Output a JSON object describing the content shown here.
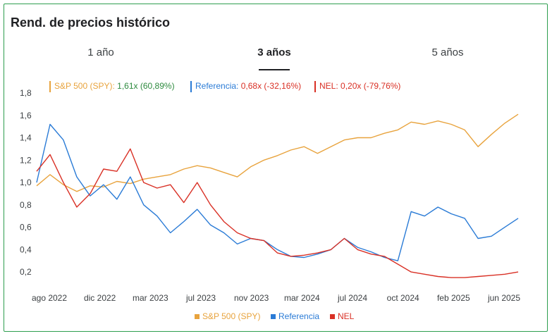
{
  "title": "Rend. de precios histórico",
  "tabs": [
    {
      "label": "1 año",
      "active": false
    },
    {
      "label": "3 años",
      "active": true
    },
    {
      "label": "5 años",
      "active": false
    }
  ],
  "legend_top": [
    {
      "name": "S&P 500 (SPY):",
      "multiple": "1,61x",
      "change": "(60,89%)",
      "color": "#e8a33d",
      "name_color": "#e8a33d",
      "value_color": "#2e8b3f"
    },
    {
      "name": "Referencia:",
      "multiple": "0,68x",
      "change": "(-32,16%)",
      "color": "#2a7bd6",
      "name_color": "#2a7bd6",
      "value_color": "#d93025"
    },
    {
      "name": "NEL:",
      "multiple": "0,20x",
      "change": "(-79,76%)",
      "color": "#d93025",
      "name_color": "#d93025",
      "value_color": "#d93025"
    }
  ],
  "legend_bottom": [
    {
      "name": "S&P 500 (SPY)",
      "color": "#e8a33d"
    },
    {
      "name": "Referencia",
      "color": "#2a7bd6"
    },
    {
      "name": "NEL",
      "color": "#d93025"
    }
  ],
  "chart_data": {
    "type": "line",
    "title": "Rend. de precios histórico",
    "xlabel": "",
    "ylabel": "",
    "x_ticks": [
      "ago 2022",
      "dic 2022",
      "mar 2023",
      "jul 2023",
      "nov 2023",
      "mar 2024",
      "jul 2024",
      "oct 2024",
      "feb 2025",
      "jun 2025"
    ],
    "y_ticks": [
      "0,2",
      "0,4",
      "0,6",
      "0,8",
      "1,0",
      "1,2",
      "1,4",
      "1,6",
      "1,8"
    ],
    "ylim": [
      0.1,
      1.8
    ],
    "xlim": [
      "2022-07",
      "2025-07"
    ],
    "grid": false,
    "series": [
      {
        "name": "S&P 500 (SPY)",
        "color": "#e8a33d",
        "points": [
          [
            "2022-07",
            0.97
          ],
          [
            "2022-08",
            1.07
          ],
          [
            "2022-09",
            0.98
          ],
          [
            "2022-10",
            0.92
          ],
          [
            "2022-11",
            0.97
          ],
          [
            "2022-12",
            0.96
          ],
          [
            "2023-01",
            1.01
          ],
          [
            "2023-02",
            0.99
          ],
          [
            "2023-03",
            1.03
          ],
          [
            "2023-04",
            1.05
          ],
          [
            "2023-05",
            1.07
          ],
          [
            "2023-06",
            1.12
          ],
          [
            "2023-07",
            1.15
          ],
          [
            "2023-08",
            1.13
          ],
          [
            "2023-09",
            1.09
          ],
          [
            "2023-10",
            1.05
          ],
          [
            "2023-11",
            1.14
          ],
          [
            "2023-12",
            1.2
          ],
          [
            "2024-01",
            1.24
          ],
          [
            "2024-02",
            1.29
          ],
          [
            "2024-03",
            1.32
          ],
          [
            "2024-04",
            1.26
          ],
          [
            "2024-05",
            1.32
          ],
          [
            "2024-06",
            1.38
          ],
          [
            "2024-07",
            1.4
          ],
          [
            "2024-08",
            1.4
          ],
          [
            "2024-09",
            1.44
          ],
          [
            "2024-10",
            1.47
          ],
          [
            "2024-11",
            1.54
          ],
          [
            "2024-12",
            1.52
          ],
          [
            "2025-01",
            1.55
          ],
          [
            "2025-02",
            1.52
          ],
          [
            "2025-03",
            1.47
          ],
          [
            "2025-04",
            1.32
          ],
          [
            "2025-05",
            1.43
          ],
          [
            "2025-06",
            1.53
          ],
          [
            "2025-07",
            1.61
          ]
        ]
      },
      {
        "name": "Referencia",
        "color": "#2a7bd6",
        "points": [
          [
            "2022-07",
            1.0
          ],
          [
            "2022-08",
            1.52
          ],
          [
            "2022-09",
            1.38
          ],
          [
            "2022-10",
            1.05
          ],
          [
            "2022-11",
            0.88
          ],
          [
            "2022-12",
            0.98
          ],
          [
            "2023-01",
            0.85
          ],
          [
            "2023-02",
            1.05
          ],
          [
            "2023-03",
            0.8
          ],
          [
            "2023-04",
            0.7
          ],
          [
            "2023-05",
            0.55
          ],
          [
            "2023-06",
            0.65
          ],
          [
            "2023-07",
            0.76
          ],
          [
            "2023-08",
            0.62
          ],
          [
            "2023-09",
            0.55
          ],
          [
            "2023-10",
            0.45
          ],
          [
            "2023-11",
            0.5
          ],
          [
            "2023-12",
            0.48
          ],
          [
            "2024-01",
            0.4
          ],
          [
            "2024-02",
            0.34
          ],
          [
            "2024-03",
            0.33
          ],
          [
            "2024-04",
            0.36
          ],
          [
            "2024-05",
            0.4
          ],
          [
            "2024-06",
            0.5
          ],
          [
            "2024-07",
            0.42
          ],
          [
            "2024-08",
            0.38
          ],
          [
            "2024-09",
            0.33
          ],
          [
            "2024-10",
            0.3
          ],
          [
            "2024-11",
            0.74
          ],
          [
            "2024-12",
            0.7
          ],
          [
            "2025-01",
            0.78
          ],
          [
            "2025-02",
            0.72
          ],
          [
            "2025-03",
            0.68
          ],
          [
            "2025-04",
            0.5
          ],
          [
            "2025-05",
            0.52
          ],
          [
            "2025-06",
            0.6
          ],
          [
            "2025-07",
            0.68
          ]
        ]
      },
      {
        "name": "NEL",
        "color": "#d93025",
        "points": [
          [
            "2022-07",
            1.1
          ],
          [
            "2022-08",
            1.25
          ],
          [
            "2022-09",
            1.0
          ],
          [
            "2022-10",
            0.78
          ],
          [
            "2022-11",
            0.9
          ],
          [
            "2022-12",
            1.12
          ],
          [
            "2023-01",
            1.1
          ],
          [
            "2023-02",
            1.3
          ],
          [
            "2023-03",
            1.0
          ],
          [
            "2023-04",
            0.95
          ],
          [
            "2023-05",
            0.98
          ],
          [
            "2023-06",
            0.82
          ],
          [
            "2023-07",
            1.0
          ],
          [
            "2023-08",
            0.8
          ],
          [
            "2023-09",
            0.65
          ],
          [
            "2023-10",
            0.55
          ],
          [
            "2023-11",
            0.5
          ],
          [
            "2023-12",
            0.48
          ],
          [
            "2024-01",
            0.37
          ],
          [
            "2024-02",
            0.34
          ],
          [
            "2024-03",
            0.35
          ],
          [
            "2024-04",
            0.37
          ],
          [
            "2024-05",
            0.4
          ],
          [
            "2024-06",
            0.5
          ],
          [
            "2024-07",
            0.4
          ],
          [
            "2024-08",
            0.36
          ],
          [
            "2024-09",
            0.34
          ],
          [
            "2024-10",
            0.27
          ],
          [
            "2024-11",
            0.2
          ],
          [
            "2024-12",
            0.18
          ],
          [
            "2025-01",
            0.16
          ],
          [
            "2025-02",
            0.15
          ],
          [
            "2025-03",
            0.15
          ],
          [
            "2025-04",
            0.16
          ],
          [
            "2025-05",
            0.17
          ],
          [
            "2025-06",
            0.18
          ],
          [
            "2025-07",
            0.2
          ]
        ]
      }
    ]
  }
}
